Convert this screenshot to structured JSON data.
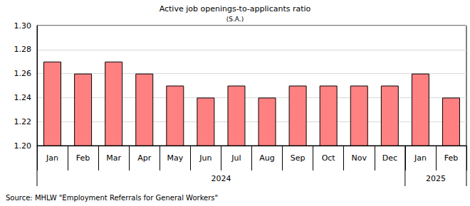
{
  "chart_data": {
    "type": "bar",
    "title": "Active job openings-to-applicants ratio",
    "subtitle": "(S.A.)",
    "categories": [
      "Jan",
      "Feb",
      "Mar",
      "Apr",
      "May",
      "Jun",
      "Jul",
      "Aug",
      "Sep",
      "Oct",
      "Nov",
      "Dec",
      "Jan",
      "Feb"
    ],
    "year_groups": [
      {
        "label": "2024",
        "count": 12
      },
      {
        "label": "2025",
        "count": 2
      }
    ],
    "values": [
      1.27,
      1.26,
      1.27,
      1.26,
      1.25,
      1.24,
      1.25,
      1.24,
      1.25,
      1.25,
      1.25,
      1.25,
      1.26,
      1.24
    ],
    "color": "#ff8080",
    "ylim": [
      1.2,
      1.3
    ],
    "yticks": [
      {
        "value": 1.2,
        "label": "1.20"
      },
      1.22,
      1.24,
      1.26,
      1.28,
      {
        "value": 1.3,
        "label": "1.30"
      }
    ],
    "grid": true,
    "source": "Source: MHLW \"Employment Referrals for General Workers\""
  }
}
